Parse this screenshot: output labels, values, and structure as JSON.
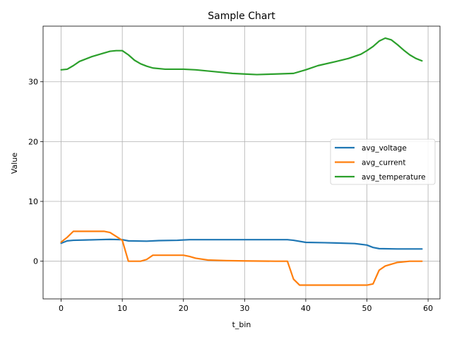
{
  "chart_data": {
    "type": "line",
    "title": "Sample Chart",
    "xlabel": "t_bin",
    "ylabel": "Value",
    "xlim": [
      -2.95,
      61.95
    ],
    "ylim": [
      -6.3,
      39.3
    ],
    "xticks": [
      0,
      10,
      20,
      30,
      40,
      50,
      60
    ],
    "yticks": [
      0,
      10,
      20,
      30
    ],
    "grid": true,
    "legend_position": "center-right",
    "series": [
      {
        "name": "avg_voltage",
        "color": "#1f77b4",
        "points": [
          [
            0,
            3.0
          ],
          [
            1,
            3.4
          ],
          [
            2,
            3.5
          ],
          [
            4,
            3.55
          ],
          [
            6,
            3.6
          ],
          [
            8,
            3.65
          ],
          [
            10,
            3.6
          ],
          [
            11,
            3.4
          ],
          [
            14,
            3.35
          ],
          [
            16,
            3.45
          ],
          [
            19,
            3.5
          ],
          [
            21,
            3.6
          ],
          [
            25,
            3.6
          ],
          [
            30,
            3.6
          ],
          [
            37,
            3.6
          ],
          [
            38,
            3.5
          ],
          [
            40,
            3.15
          ],
          [
            43,
            3.1
          ],
          [
            45,
            3.05
          ],
          [
            48,
            2.95
          ],
          [
            50,
            2.7
          ],
          [
            51,
            2.3
          ],
          [
            52,
            2.1
          ],
          [
            55,
            2.05
          ],
          [
            59,
            2.05
          ]
        ]
      },
      {
        "name": "avg_current",
        "color": "#ff7f0e",
        "points": [
          [
            0,
            3.2
          ],
          [
            1,
            4.0
          ],
          [
            2,
            5.0
          ],
          [
            4,
            5.0
          ],
          [
            7,
            5.0
          ],
          [
            8,
            4.8
          ],
          [
            10,
            3.5
          ],
          [
            11,
            0.0
          ],
          [
            13,
            0.0
          ],
          [
            14,
            0.3
          ],
          [
            15,
            1.0
          ],
          [
            18,
            1.0
          ],
          [
            20,
            1.0
          ],
          [
            21,
            0.8
          ],
          [
            22,
            0.5
          ],
          [
            24,
            0.2
          ],
          [
            27,
            0.1
          ],
          [
            30,
            0.05
          ],
          [
            35,
            0.0
          ],
          [
            37,
            0.0
          ],
          [
            38,
            -3.0
          ],
          [
            39,
            -4.0
          ],
          [
            42,
            -4.0
          ],
          [
            50,
            -4.0
          ],
          [
            51,
            -3.8
          ],
          [
            52,
            -1.5
          ],
          [
            53,
            -0.8
          ],
          [
            55,
            -0.2
          ],
          [
            57,
            0.0
          ],
          [
            59,
            0.0
          ]
        ]
      },
      {
        "name": "avg_temperature",
        "color": "#2ca02c",
        "points": [
          [
            0,
            32.0
          ],
          [
            1,
            32.1
          ],
          [
            2,
            32.7
          ],
          [
            3,
            33.4
          ],
          [
            5,
            34.2
          ],
          [
            7,
            34.8
          ],
          [
            8,
            35.1
          ],
          [
            9,
            35.2
          ],
          [
            10,
            35.2
          ],
          [
            11,
            34.5
          ],
          [
            12,
            33.6
          ],
          [
            13,
            33.0
          ],
          [
            14,
            32.6
          ],
          [
            15,
            32.3
          ],
          [
            17,
            32.1
          ],
          [
            20,
            32.1
          ],
          [
            22,
            32.0
          ],
          [
            25,
            31.7
          ],
          [
            28,
            31.4
          ],
          [
            30,
            31.3
          ],
          [
            32,
            31.2
          ],
          [
            35,
            31.3
          ],
          [
            38,
            31.4
          ],
          [
            40,
            32.0
          ],
          [
            42,
            32.7
          ],
          [
            45,
            33.4
          ],
          [
            47,
            33.9
          ],
          [
            49,
            34.6
          ],
          [
            50,
            35.2
          ],
          [
            51,
            35.9
          ],
          [
            52,
            36.8
          ],
          [
            53,
            37.3
          ],
          [
            54,
            37.0
          ],
          [
            55,
            36.2
          ],
          [
            56,
            35.3
          ],
          [
            57,
            34.5
          ],
          [
            58,
            33.9
          ],
          [
            59,
            33.5
          ]
        ]
      }
    ]
  }
}
